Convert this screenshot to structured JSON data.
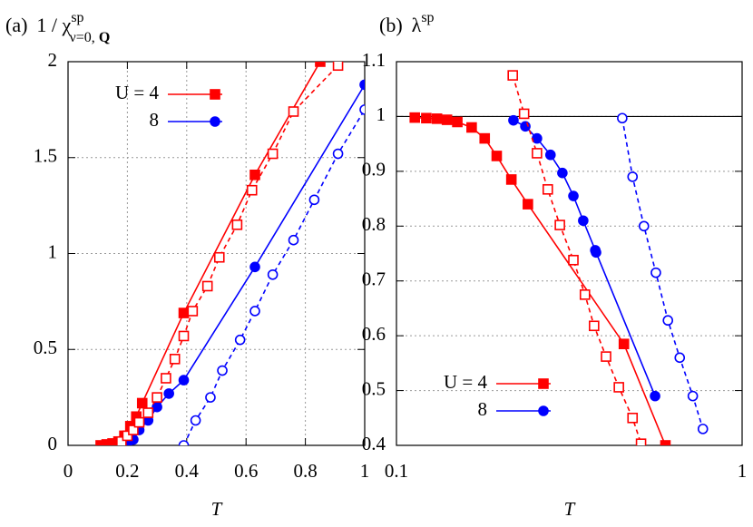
{
  "chart_data": [
    {
      "type": "line",
      "panel_label": "(a)",
      "title": "1 / χ",
      "title_sup": "sp",
      "title_sub": "ν=0,",
      "title_sub_bold": "Q",
      "xlabel": "T",
      "xlim": [
        0,
        1
      ],
      "xticks": [
        0,
        0.2,
        0.4,
        0.6,
        0.8,
        1
      ],
      "ylim": [
        0,
        2
      ],
      "yticks": [
        0,
        0.5,
        1,
        1.5,
        2
      ],
      "xscale": "linear",
      "grid": true,
      "legend": "upper left",
      "series": [
        {
          "name": "U = 4",
          "color": "#ff0000",
          "marker": "square",
          "filled": true,
          "dashed": false,
          "x": [
            0.11,
            0.13,
            0.15,
            0.17,
            0.19,
            0.21,
            0.23,
            0.25,
            0.39,
            0.63,
            0.85
          ],
          "values": [
            0,
            0.005,
            0.01,
            0.02,
            0.05,
            0.1,
            0.15,
            0.22,
            0.69,
            1.41,
            2.0
          ]
        },
        {
          "name": "8",
          "color": "#0000ff",
          "marker": "circle",
          "filled": true,
          "dashed": false,
          "x": [
            0.19,
            0.2,
            0.22,
            0.24,
            0.27,
            0.3,
            0.34,
            0.39,
            0.63,
            1.0
          ],
          "values": [
            0,
            0.01,
            0.03,
            0.08,
            0.13,
            0.2,
            0.27,
            0.34,
            0.93,
            1.88
          ]
        },
        {
          "color": "#ff0000",
          "marker": "square",
          "filled": false,
          "dashed": true,
          "x": [
            0.18,
            0.2,
            0.22,
            0.24,
            0.27,
            0.3,
            0.33,
            0.36,
            0.39,
            0.42,
            0.47,
            0.51,
            0.57,
            0.62,
            0.69,
            0.76,
            0.91
          ],
          "values": [
            0.02,
            0.05,
            0.08,
            0.12,
            0.17,
            0.25,
            0.35,
            0.45,
            0.57,
            0.7,
            0.83,
            0.98,
            1.15,
            1.33,
            1.52,
            1.74,
            1.98
          ]
        },
        {
          "color": "#0000ff",
          "marker": "circle",
          "filled": false,
          "dashed": true,
          "x": [
            0.39,
            0.43,
            0.48,
            0.52,
            0.58,
            0.63,
            0.69,
            0.76,
            0.83,
            0.91,
            1.0
          ],
          "values": [
            0,
            0.13,
            0.25,
            0.39,
            0.55,
            0.7,
            0.89,
            1.07,
            1.28,
            1.52,
            1.75
          ]
        }
      ]
    },
    {
      "type": "line",
      "panel_label": "(b)",
      "title": "λ",
      "title_sup": "sp",
      "xlabel": "T",
      "xlim": [
        0.1,
        1
      ],
      "xticks": [
        0.1,
        1
      ],
      "ylim": [
        0.4,
        1.1
      ],
      "yticks": [
        0.4,
        0.5,
        0.6,
        0.7,
        0.8,
        0.9,
        1,
        1.1
      ],
      "xscale": "log",
      "grid": true,
      "hline": 1,
      "legend": "lower left",
      "series": [
        {
          "name": "U = 4",
          "color": "#ff0000",
          "marker": "square",
          "filled": true,
          "dashed": false,
          "x": [
            0.113,
            0.122,
            0.131,
            0.14,
            0.15,
            0.165,
            0.18,
            0.195,
            0.215,
            0.24,
            0.455,
            0.6
          ],
          "values": [
            0.998,
            0.997,
            0.996,
            0.994,
            0.99,
            0.98,
            0.96,
            0.928,
            0.885,
            0.84,
            0.585,
            0.4
          ]
        },
        {
          "name": "8",
          "color": "#0000ff",
          "marker": "circle",
          "filled": true,
          "dashed": false,
          "x": [
            0.218,
            0.236,
            0.255,
            0.279,
            0.302,
            0.325,
            0.347,
            0.376,
            0.378,
            0.56
          ],
          "values": [
            0.993,
            0.982,
            0.96,
            0.93,
            0.897,
            0.855,
            0.81,
            0.756,
            0.752,
            0.49
          ]
        },
        {
          "color": "#ff0000",
          "marker": "square",
          "filled": false,
          "dashed": true,
          "x": [
            0.217,
            0.234,
            0.255,
            0.274,
            0.297,
            0.325,
            0.351,
            0.373,
            0.404,
            0.44,
            0.482,
            0.51
          ],
          "values": [
            1.075,
            1.005,
            0.933,
            0.867,
            0.802,
            0.738,
            0.675,
            0.618,
            0.562,
            0.506,
            0.45,
            0.403
          ]
        },
        {
          "color": "#0000ff",
          "marker": "circle",
          "filled": false,
          "dashed": true,
          "x": [
            0.45,
            0.482,
            0.52,
            0.563,
            0.61,
            0.66,
            0.72,
            0.77
          ],
          "values": [
            0.997,
            0.89,
            0.8,
            0.715,
            0.628,
            0.56,
            0.49,
            0.43
          ]
        }
      ]
    }
  ]
}
